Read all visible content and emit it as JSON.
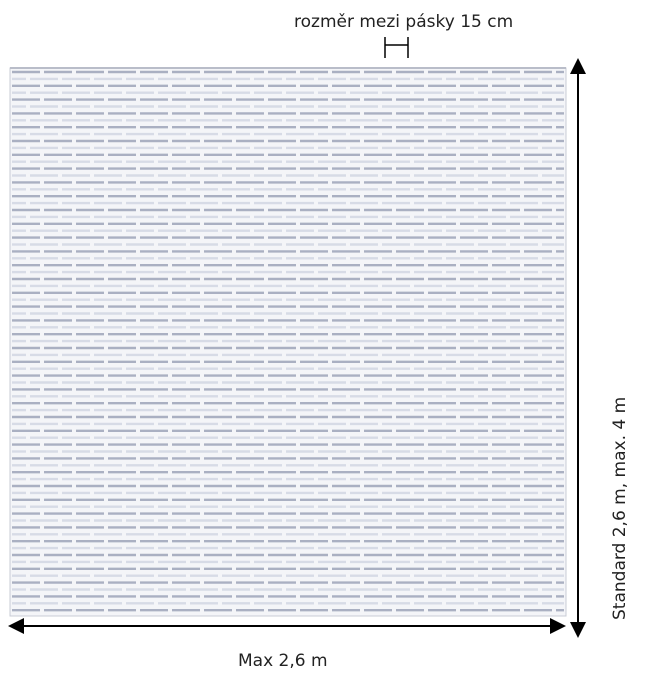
{
  "labels": {
    "spacing": "rozměr mezi pásky 15 cm",
    "width": "Max 2,6 m",
    "height": "Standard 2,6 m, max. 4 m"
  },
  "colors": {
    "background": "#ffffff",
    "curtain_edge": "#c8ccd6",
    "strip": "#aab0c2",
    "strip_highlight": "#d7dbe6",
    "arrow": "#000000",
    "text": "#222222"
  },
  "icons": {
    "width_arrow": "double-headed-horizontal-arrow",
    "height_arrow": "double-headed-vertical-arrow",
    "spacing_marker": "dimension-bracket"
  }
}
